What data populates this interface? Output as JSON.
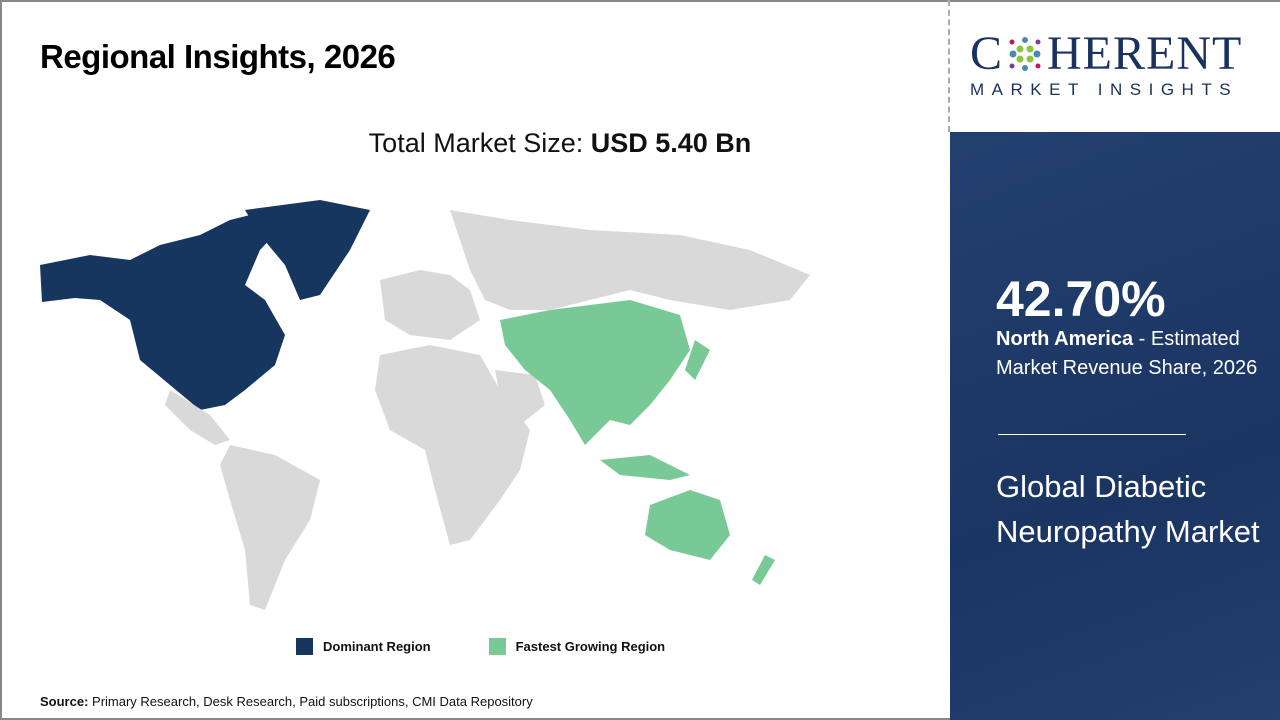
{
  "header": {
    "title": "Regional Insights, 2026"
  },
  "market_size": {
    "label": "Total Market Size: ",
    "value": "USD 5.40 Bn"
  },
  "legend": [
    {
      "label": "Dominant Region",
      "color": "#17365f"
    },
    {
      "label": "Fastest Growing Region",
      "color": "#79c996"
    }
  ],
  "map": {
    "base_color": "#d9d9d9",
    "dominant_region": "North America",
    "fastest_growing_region": "Asia Pacific"
  },
  "source": {
    "label": "Source:",
    "text": " Primary Research, Desk Research, Paid subscriptions, CMI Data Repository"
  },
  "logo": {
    "top": "COHERENT",
    "bottom": "MARKET INSIGHTS"
  },
  "panel": {
    "percent": "42.70%",
    "region": "North America",
    "desc": " - Estimated Market Revenue Share, 2026",
    "market_name": "Global Diabetic Neuropathy Market"
  }
}
